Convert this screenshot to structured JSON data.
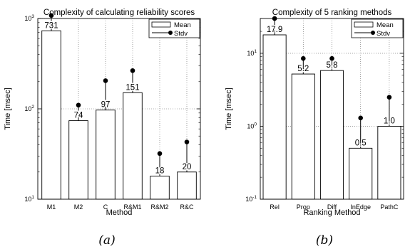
{
  "chart_data": [
    {
      "type": "bar",
      "title": "Complexity of calculating reliability scores",
      "xlabel": "Method",
      "ylabel": "Time [msec]",
      "yscale": "log",
      "ylim": [
        10,
        1000
      ],
      "yticks": [
        {
          "base": "10",
          "exp": "1"
        },
        {
          "base": "10",
          "exp": "2"
        },
        {
          "base": "10",
          "exp": "3"
        }
      ],
      "categories": [
        "M1",
        "M2",
        "C",
        "R&M1",
        "R&M2",
        "R&C"
      ],
      "series": [
        {
          "name": "Mean",
          "values": [
            731,
            74,
            97,
            151,
            18,
            20
          ]
        },
        {
          "name": "Stdv",
          "values": [
            1080,
            110,
            205,
            265,
            32,
            43
          ]
        }
      ],
      "data_labels": [
        "731",
        "74",
        "97",
        "151",
        "18",
        "20"
      ],
      "grid": true,
      "legend": "top-right",
      "caption": "(a)"
    },
    {
      "type": "bar",
      "title": "Complexity of 5 ranking methods",
      "xlabel": "Ranking Method",
      "ylabel": "Time [msec]",
      "yscale": "log",
      "ylim": [
        0.1,
        30
      ],
      "yticks": [
        {
          "base": "10",
          "exp": "-1"
        },
        {
          "base": "10",
          "exp": "0"
        },
        {
          "base": "10",
          "exp": "1"
        }
      ],
      "categories": [
        "Rel",
        "Prop",
        "Diff",
        "InEdge",
        "PathC"
      ],
      "series": [
        {
          "name": "Mean",
          "values": [
            17.9,
            5.2,
            5.8,
            0.5,
            1.0
          ]
        },
        {
          "name": "Stdv",
          "values": [
            30,
            8.5,
            8.5,
            1.3,
            2.5
          ]
        }
      ],
      "data_labels": [
        "17.9",
        "5.2",
        "5.8",
        "0.5",
        "1.0"
      ],
      "grid": true,
      "legend": "top-right",
      "caption": "(b)"
    }
  ]
}
